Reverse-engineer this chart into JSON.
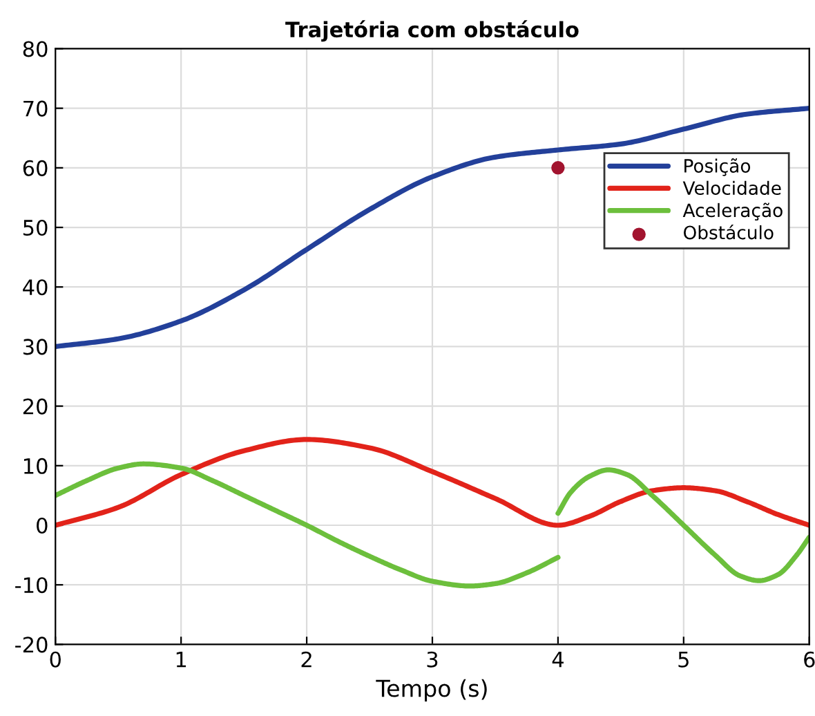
{
  "chart_data": {
    "type": "line",
    "title": "Trajetória com obstáculo",
    "xlabel": "Tempo (s)",
    "xlim": [
      0,
      6
    ],
    "xticks": [
      0,
      1,
      2,
      3,
      4,
      5,
      6
    ],
    "ylim": [
      -20,
      80
    ],
    "yticks": [
      -20,
      -10,
      0,
      10,
      20,
      30,
      40,
      50,
      60,
      70,
      80
    ],
    "grid": true,
    "legend": "top right",
    "series": [
      {
        "name": "Posição",
        "color": "#23409a",
        "x": [
          0,
          0.5,
          1,
          1.5,
          2,
          2.5,
          3,
          3.5,
          4,
          4.5,
          5,
          5.5,
          6
        ],
        "values": [
          30,
          31.3,
          34.3,
          39.5,
          46.3,
          53,
          58.5,
          61.8,
          63,
          64,
          66.5,
          69,
          70
        ]
      },
      {
        "name": "Velocidade",
        "color": "#e2231a",
        "x": [
          0,
          0.5,
          1,
          1.5,
          2,
          2.5,
          3,
          3.5,
          4,
          4.25,
          4.5,
          4.75,
          5,
          5.25,
          5.5,
          5.75,
          6
        ],
        "values": [
          0,
          3,
          8.5,
          12.5,
          14.4,
          13,
          9,
          4.5,
          0,
          1.5,
          4,
          5.8,
          6.3,
          5.8,
          4,
          1.8,
          0
        ]
      },
      {
        "name": "Aceleração",
        "color": "#6cbf3c",
        "x": [
          0,
          0.25,
          0.5,
          0.7,
          1,
          1.25,
          1.5,
          1.75,
          2,
          2.25,
          2.5,
          2.75,
          3,
          3.3,
          3.5,
          3.75,
          4
        ],
        "values": [
          5,
          7.5,
          9.6,
          10.3,
          9.6,
          7.5,
          5,
          2.5,
          0,
          -2.7,
          -5.2,
          -7.5,
          -9.4,
          -10.2,
          -9.8,
          -8,
          -5.4
        ]
      },
      {
        "color": "#6cbf3c",
        "x": [
          4,
          4.1,
          4.25,
          4.4,
          4.55,
          4.75,
          5,
          5.25,
          5.45,
          5.6,
          5.75,
          5.9,
          6
        ],
        "values": [
          2,
          5.5,
          8.2,
          9.3,
          8.5,
          5,
          0,
          -5,
          -8.5,
          -9.3,
          -8.3,
          -5,
          -2
        ]
      },
      {
        "name": "Obstáculo",
        "color": "#a2142f",
        "type": "scatter",
        "marker": "circle",
        "x": [
          4
        ],
        "values": [
          60
        ]
      }
    ]
  }
}
